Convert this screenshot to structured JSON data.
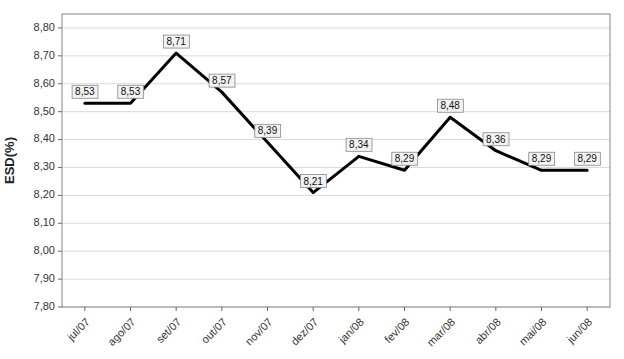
{
  "chart_data": {
    "type": "line",
    "ylabel": "ESD(%)",
    "categories": [
      "jul/07",
      "ago/07",
      "set/07",
      "out/07",
      "nov/07",
      "dez/07",
      "jan/08",
      "fev/08",
      "mar/08",
      "abr/08",
      "mai/08",
      "jun/08"
    ],
    "values": [
      8.53,
      8.53,
      8.71,
      8.57,
      8.39,
      8.21,
      8.34,
      8.29,
      8.48,
      8.36,
      8.29,
      8.29
    ],
    "value_labels": [
      "8,53",
      "8,53",
      "8,71",
      "8,57",
      "8,39",
      "8,21",
      "8,34",
      "8,29",
      "8,48",
      "8,36",
      "8,29",
      "8,29"
    ],
    "color": "#000000",
    "ylim": [
      7.8,
      8.85
    ],
    "yticks": [
      {
        "value": 7.8,
        "label": "7,80"
      },
      {
        "value": 7.9,
        "label": "7,90"
      },
      {
        "value": 8.0,
        "label": "8,00"
      },
      {
        "value": 8.1,
        "label": "8,10"
      },
      {
        "value": 8.2,
        "label": "8,20"
      },
      {
        "value": 8.3,
        "label": "8,30"
      },
      {
        "value": 8.4,
        "label": "8,40"
      },
      {
        "value": 8.5,
        "label": "8,50"
      },
      {
        "value": 8.6,
        "label": "8,60"
      },
      {
        "value": 8.7,
        "label": "8,70"
      },
      {
        "value": 8.8,
        "label": "8,80"
      }
    ],
    "grid": true,
    "data_labels": true
  }
}
